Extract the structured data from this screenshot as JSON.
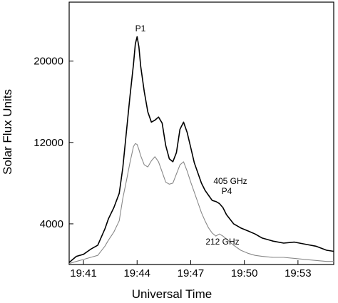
{
  "chart_data": {
    "type": "line",
    "title": "",
    "xlabel": "Universal Time",
    "ylabel": "Solar Flux Units",
    "xlim": [
      "19:40:12",
      "19:55:00"
    ],
    "ylim": [
      0,
      25800
    ],
    "x_ticks": [
      "19:41",
      "19:44",
      "19:47",
      "19:50",
      "19:53"
    ],
    "y_ticks": [
      4000,
      12000,
      20000
    ],
    "grid": false,
    "series": [
      {
        "name": "405 GHz",
        "color": "#000000",
        "x": [
          "19:40:12",
          "19:40:36",
          "19:41:00",
          "19:41:24",
          "19:41:48",
          "19:42:12",
          "19:42:24",
          "19:42:42",
          "19:43:00",
          "19:43:12",
          "19:43:24",
          "19:43:36",
          "19:43:48",
          "19:43:54",
          "19:44:00",
          "19:44:06",
          "19:44:12",
          "19:44:24",
          "19:44:36",
          "19:44:48",
          "19:45:00",
          "19:45:12",
          "19:45:24",
          "19:45:36",
          "19:45:48",
          "19:46:00",
          "19:46:12",
          "19:46:24",
          "19:46:36",
          "19:46:48",
          "19:47:00",
          "19:47:12",
          "19:47:24",
          "19:47:36",
          "19:47:48",
          "19:48:00",
          "19:48:12",
          "19:48:24",
          "19:48:36",
          "19:48:48",
          "19:49:00",
          "19:49:24",
          "19:49:48",
          "19:50:12",
          "19:50:36",
          "19:51:00",
          "19:51:36",
          "19:52:12",
          "19:52:48",
          "19:53:24",
          "19:54:00",
          "19:54:36",
          "19:55:00"
        ],
        "values": [
          200,
          800,
          1000,
          1500,
          1900,
          3500,
          4500,
          5600,
          7000,
          9500,
          13000,
          16500,
          19700,
          21700,
          22400,
          21400,
          19500,
          17000,
          15000,
          14000,
          14200,
          14500,
          13900,
          11700,
          10400,
          10100,
          11000,
          13300,
          14000,
          13000,
          11500,
          10000,
          9000,
          8000,
          7300,
          6800,
          6300,
          6200,
          6000,
          5600,
          4900,
          4000,
          3600,
          3300,
          3000,
          2600,
          2300,
          2100,
          2200,
          2000,
          1800,
          1400,
          1300
        ]
      },
      {
        "name": "212 GHz",
        "color": "#888888",
        "x": [
          "19:40:12",
          "19:40:36",
          "19:41:00",
          "19:41:24",
          "19:41:48",
          "19:42:12",
          "19:42:24",
          "19:42:42",
          "19:43:00",
          "19:43:12",
          "19:43:24",
          "19:43:36",
          "19:43:48",
          "19:43:54",
          "19:44:00",
          "19:44:06",
          "19:44:12",
          "19:44:24",
          "19:44:36",
          "19:44:48",
          "19:45:00",
          "19:45:12",
          "19:45:24",
          "19:45:36",
          "19:45:48",
          "19:46:00",
          "19:46:12",
          "19:46:24",
          "19:46:36",
          "19:46:48",
          "19:47:00",
          "19:47:12",
          "19:47:24",
          "19:47:36",
          "19:47:48",
          "19:48:00",
          "19:48:12",
          "19:48:24",
          "19:48:36",
          "19:48:48",
          "19:49:00",
          "19:49:24",
          "19:49:48",
          "19:50:12",
          "19:50:36",
          "19:51:00",
          "19:51:36",
          "19:52:12",
          "19:52:48",
          "19:53:24",
          "19:54:00",
          "19:54:36",
          "19:55:00"
        ],
        "values": [
          100,
          300,
          500,
          700,
          900,
          1800,
          2400,
          3200,
          4300,
          6500,
          8200,
          10000,
          11600,
          11900,
          11800,
          11300,
          10700,
          9800,
          9600,
          10200,
          10600,
          10100,
          9100,
          8100,
          7900,
          8000,
          8900,
          9800,
          10100,
          9200,
          8100,
          7100,
          6100,
          5100,
          4300,
          3600,
          3100,
          2800,
          3000,
          2800,
          2500,
          1900,
          1400,
          1100,
          900,
          800,
          700,
          700,
          600,
          500,
          400,
          300,
          300
        ]
      }
    ],
    "annotations": [
      "P1",
      "405 GHz",
      "P4",
      "212 GHz"
    ]
  }
}
